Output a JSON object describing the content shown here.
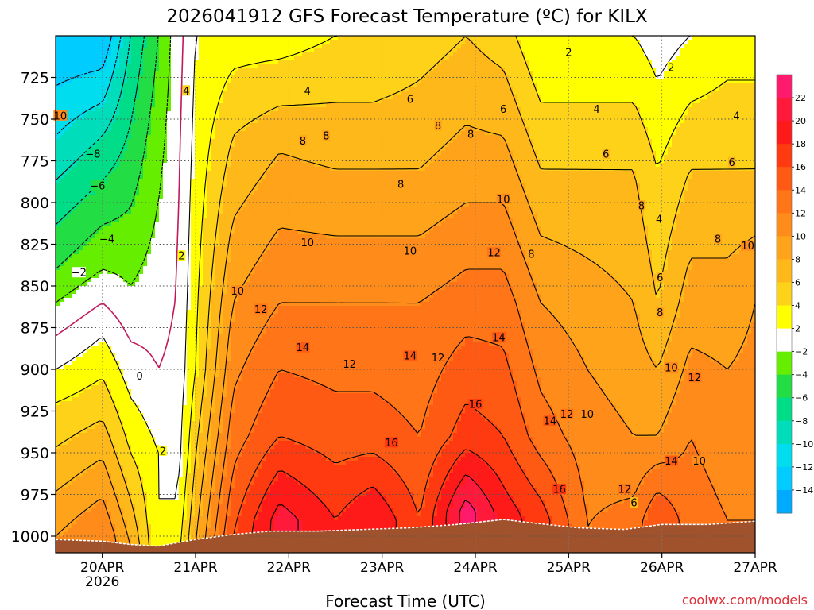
{
  "chart_data": {
    "type": "heatmap",
    "title": "2026041912 GFS Forecast Temperature (ºC) for KILX",
    "xlabel": "Forecast Time (UTC)",
    "ylabel": "",
    "credit": "coolwx.com/models",
    "x_ticks": [
      {
        "label": "20APR",
        "sub": "2026",
        "day": 0
      },
      {
        "label": "21APR",
        "sub": "",
        "day": 1
      },
      {
        "label": "22APR",
        "sub": "",
        "day": 2
      },
      {
        "label": "23APR",
        "sub": "",
        "day": 3
      },
      {
        "label": "24APR",
        "sub": "",
        "day": 4
      },
      {
        "label": "25APR",
        "sub": "",
        "day": 5
      },
      {
        "label": "26APR",
        "sub": "",
        "day": 6
      },
      {
        "label": "27APR",
        "sub": "",
        "day": 7
      }
    ],
    "xlim_days": [
      -0.5,
      7.0
    ],
    "ylim_hpa": [
      700,
      1010
    ],
    "y_ticks": [
      725,
      750,
      775,
      800,
      825,
      850,
      875,
      900,
      925,
      950,
      975,
      1000
    ],
    "y_labels": [
      "725",
      "750",
      "775",
      "800",
      "825",
      "850",
      "875",
      "900",
      "925",
      "950",
      "975",
      "1000"
    ],
    "colorbar": {
      "ticks": [
        22,
        20,
        18,
        16,
        14,
        12,
        10,
        8,
        6,
        4,
        2,
        -2,
        -4,
        -6,
        -8,
        -10,
        -12,
        -14
      ],
      "labels": [
        "22",
        "20",
        "18",
        "16",
        "14",
        "12",
        "10",
        "8",
        "6",
        "4",
        "2",
        "−2",
        "−4",
        "−6",
        "−8",
        "−10",
        "−12",
        "−14"
      ],
      "bands": [
        {
          "from": 22,
          "to": 24,
          "color": "#ff1a6e"
        },
        {
          "from": 20,
          "to": 22,
          "color": "#ff1a3c"
        },
        {
          "from": 18,
          "to": 20,
          "color": "#ff1a1a"
        },
        {
          "from": 16,
          "to": 18,
          "color": "#ff3a10"
        },
        {
          "from": 14,
          "to": 16,
          "color": "#ff5a14"
        },
        {
          "from": 12,
          "to": 14,
          "color": "#ff7518"
        },
        {
          "from": 10,
          "to": 12,
          "color": "#ff8c1a"
        },
        {
          "from": 8,
          "to": 10,
          "color": "#ffa31a"
        },
        {
          "from": 6,
          "to": 8,
          "color": "#ffb81a"
        },
        {
          "from": 4,
          "to": 6,
          "color": "#ffd21a"
        },
        {
          "from": 2,
          "to": 4,
          "color": "#ffff00"
        },
        {
          "from": -2,
          "to": 2,
          "color": "#ffffff"
        },
        {
          "from": -4,
          "to": -2,
          "color": "#66ee00"
        },
        {
          "from": -6,
          "to": -4,
          "color": "#22dd44"
        },
        {
          "from": -8,
          "to": -6,
          "color": "#00dd88"
        },
        {
          "from": -10,
          "to": -8,
          "color": "#00ddbb"
        },
        {
          "from": -12,
          "to": -10,
          "color": "#00ddee"
        },
        {
          "from": -14,
          "to": -12,
          "color": "#00ccff"
        },
        {
          "from": -16,
          "to": -14,
          "color": "#00aaff"
        }
      ]
    },
    "columns": [
      {
        "day": -0.5,
        "low": [
          {
            "p": 700,
            "t": -14
          },
          {
            "p": 760,
            "t": -10
          },
          {
            "p": 840,
            "t": -4
          },
          {
            "p": 880,
            "t": 0
          },
          {
            "p": 920,
            "t": 4
          },
          {
            "p": 1000,
            "t": 10
          }
        ]
      },
      {
        "day": 0.0,
        "low": [
          {
            "p": 700,
            "t": -14
          },
          {
            "p": 760,
            "t": -8
          },
          {
            "p": 840,
            "t": -2
          },
          {
            "p": 880,
            "t": 2
          },
          {
            "p": 930,
            "t": 6
          },
          {
            "p": 1000,
            "t": 12
          }
        ]
      },
      {
        "day": 0.3,
        "low": [
          {
            "p": 700,
            "t": -8
          },
          {
            "p": 780,
            "t": -5
          },
          {
            "p": 850,
            "t": -2
          },
          {
            "p": 900,
            "t": 1
          },
          {
            "p": 950,
            "t": 4
          },
          {
            "p": 1005,
            "t": 8
          }
        ]
      },
      {
        "day": 0.6,
        "low": [
          {
            "p": 700,
            "t": -4
          },
          {
            "p": 800,
            "t": -2
          },
          {
            "p": 900,
            "t": 0
          },
          {
            "p": 950,
            "t": 2
          },
          {
            "p": 1005,
            "t": 2
          }
        ]
      },
      {
        "day": 0.8,
        "low": [
          {
            "p": 700,
            "t": -1
          },
          {
            "p": 850,
            "t": 0
          },
          {
            "p": 950,
            "t": 1
          },
          {
            "p": 1005,
            "t": 3
          }
        ]
      },
      {
        "day": 1.0,
        "low": [
          {
            "p": 700,
            "t": 2
          },
          {
            "p": 800,
            "t": 3
          },
          {
            "p": 900,
            "t": 4
          },
          {
            "p": 1005,
            "t": 8
          }
        ]
      },
      {
        "day": 1.4,
        "low": [
          {
            "p": 700,
            "t": 3
          },
          {
            "p": 760,
            "t": 6
          },
          {
            "p": 860,
            "t": 10
          },
          {
            "p": 940,
            "t": 13
          },
          {
            "p": 1000,
            "t": 16
          }
        ]
      },
      {
        "day": 1.9,
        "low": [
          {
            "p": 700,
            "t": 3
          },
          {
            "p": 770,
            "t": 8
          },
          {
            "p": 860,
            "t": 12
          },
          {
            "p": 940,
            "t": 16
          },
          {
            "p": 990,
            "t": 21
          }
        ]
      },
      {
        "day": 2.5,
        "low": [
          {
            "p": 700,
            "t": 4
          },
          {
            "p": 780,
            "t": 8
          },
          {
            "p": 860,
            "t": 12
          },
          {
            "p": 940,
            "t": 15
          },
          {
            "p": 990,
            "t": 18
          }
        ]
      },
      {
        "day": 2.9,
        "low": [
          {
            "p": 700,
            "t": 4
          },
          {
            "p": 780,
            "t": 8
          },
          {
            "p": 860,
            "t": 12
          },
          {
            "p": 940,
            "t": 15
          },
          {
            "p": 990,
            "t": 20
          }
        ]
      },
      {
        "day": 3.4,
        "low": [
          {
            "p": 700,
            "t": 5
          },
          {
            "p": 780,
            "t": 8
          },
          {
            "p": 860,
            "t": 12
          },
          {
            "p": 940,
            "t": 14
          },
          {
            "p": 990,
            "t": 16
          }
        ]
      },
      {
        "day": 3.9,
        "low": [
          {
            "p": 700,
            "t": 6
          },
          {
            "p": 780,
            "t": 9
          },
          {
            "p": 860,
            "t": 13
          },
          {
            "p": 940,
            "t": 17
          },
          {
            "p": 985,
            "t": 23
          }
        ]
      },
      {
        "day": 4.3,
        "low": [
          {
            "p": 700,
            "t": 5
          },
          {
            "p": 780,
            "t": 9
          },
          {
            "p": 860,
            "t": 13
          },
          {
            "p": 940,
            "t": 16
          },
          {
            "p": 985,
            "t": 19
          }
        ]
      },
      {
        "day": 4.7,
        "low": [
          {
            "p": 700,
            "t": 2
          },
          {
            "p": 780,
            "t": 6
          },
          {
            "p": 860,
            "t": 10
          },
          {
            "p": 940,
            "t": 13
          },
          {
            "p": 990,
            "t": 17
          }
        ]
      },
      {
        "day": 5.2,
        "low": [
          {
            "p": 700,
            "t": 2
          },
          {
            "p": 780,
            "t": 6
          },
          {
            "p": 860,
            "t": 9
          },
          {
            "p": 940,
            "t": 11
          },
          {
            "p": 995,
            "t": 12
          }
        ]
      },
      {
        "day": 5.7,
        "low": [
          {
            "p": 700,
            "t": 2
          },
          {
            "p": 780,
            "t": 6
          },
          {
            "p": 860,
            "t": 8
          },
          {
            "p": 940,
            "t": 10
          },
          {
            "p": 995,
            "t": 13
          }
        ]
      },
      {
        "day": 5.95,
        "low": [
          {
            "p": 700,
            "t": 1
          },
          {
            "p": 780,
            "t": 4
          },
          {
            "p": 860,
            "t": 6
          },
          {
            "p": 940,
            "t": 10
          },
          {
            "p": 990,
            "t": 16
          }
        ]
      },
      {
        "day": 6.3,
        "low": [
          {
            "p": 700,
            "t": 2
          },
          {
            "p": 780,
            "t": 6
          },
          {
            "p": 860,
            "t": 9
          },
          {
            "p": 940,
            "t": 12
          },
          {
            "p": 990,
            "t": 13
          }
        ]
      },
      {
        "day": 6.7,
        "low": [
          {
            "p": 700,
            "t": 3
          },
          {
            "p": 780,
            "t": 6
          },
          {
            "p": 860,
            "t": 9
          },
          {
            "p": 940,
            "t": 11
          },
          {
            "p": 990,
            "t": 12
          }
        ]
      },
      {
        "day": 7.0,
        "low": [
          {
            "p": 700,
            "t": 3
          },
          {
            "p": 780,
            "t": 6
          },
          {
            "p": 860,
            "t": 10
          },
          {
            "p": 940,
            "t": 11
          },
          {
            "p": 990,
            "t": 12
          }
        ]
      }
    ],
    "surface_pressure": [
      {
        "day": -0.5,
        "p": 1002
      },
      {
        "day": 0.0,
        "p": 1003
      },
      {
        "day": 0.3,
        "p": 1005
      },
      {
        "day": 0.6,
        "p": 1006
      },
      {
        "day": 1.0,
        "p": 1002
      },
      {
        "day": 1.4,
        "p": 999
      },
      {
        "day": 1.8,
        "p": 997
      },
      {
        "day": 2.3,
        "p": 997
      },
      {
        "day": 2.8,
        "p": 996
      },
      {
        "day": 3.3,
        "p": 995
      },
      {
        "day": 3.8,
        "p": 993
      },
      {
        "day": 4.3,
        "p": 990
      },
      {
        "day": 4.6,
        "p": 992
      },
      {
        "day": 5.1,
        "p": 995
      },
      {
        "day": 5.6,
        "p": 996
      },
      {
        "day": 6.0,
        "p": 993
      },
      {
        "day": 6.5,
        "p": 993
      },
      {
        "day": 7.0,
        "p": 991
      }
    ],
    "contour_labels": [
      {
        "text": "2",
        "day": 5.0,
        "p": 710
      },
      {
        "text": "2",
        "day": 6.1,
        "p": 719
      },
      {
        "text": "4",
        "day": 0.9,
        "p": 733
      },
      {
        "text": "4",
        "day": 2.2,
        "p": 733
      },
      {
        "text": "6",
        "day": 3.3,
        "p": 738
      },
      {
        "text": "6",
        "day": 4.3,
        "p": 744
      },
      {
        "text": "4",
        "day": 5.3,
        "p": 744
      },
      {
        "text": "4",
        "day": 6.8,
        "p": 748
      },
      {
        "text": "10",
        "day": -0.45,
        "p": 748
      },
      {
        "text": "8",
        "day": 2.4,
        "p": 760
      },
      {
        "text": "8",
        "day": 3.6,
        "p": 754
      },
      {
        "text": "8",
        "day": 3.95,
        "p": 759
      },
      {
        "text": "−8",
        "day": -0.1,
        "p": 771
      },
      {
        "text": "6",
        "day": 5.4,
        "p": 771
      },
      {
        "text": "6",
        "day": 6.75,
        "p": 776
      },
      {
        "text": "8",
        "day": 2.15,
        "p": 763
      },
      {
        "text": "−6",
        "day": -0.05,
        "p": 790
      },
      {
        "text": "8",
        "day": 3.2,
        "p": 789
      },
      {
        "text": "10",
        "day": 4.3,
        "p": 798
      },
      {
        "text": "8",
        "day": 5.78,
        "p": 802
      },
      {
        "text": "4",
        "day": 5.97,
        "p": 810
      },
      {
        "text": "−4",
        "day": 0.05,
        "p": 822
      },
      {
        "text": "10",
        "day": 2.2,
        "p": 824
      },
      {
        "text": "10",
        "day": 3.3,
        "p": 829
      },
      {
        "text": "12",
        "day": 4.2,
        "p": 830
      },
      {
        "text": "8",
        "day": 4.6,
        "p": 831
      },
      {
        "text": "8",
        "day": 6.6,
        "p": 822
      },
      {
        "text": "10",
        "day": 6.92,
        "p": 826
      },
      {
        "text": "−2",
        "day": -0.25,
        "p": 842
      },
      {
        "text": "2",
        "day": 0.85,
        "p": 832
      },
      {
        "text": "6",
        "day": 5.98,
        "p": 845
      },
      {
        "text": "10",
        "day": 1.45,
        "p": 853
      },
      {
        "text": "12",
        "day": 1.7,
        "p": 864
      },
      {
        "text": "8",
        "day": 5.98,
        "p": 866
      },
      {
        "text": "14",
        "day": 2.15,
        "p": 887
      },
      {
        "text": "14",
        "day": 4.25,
        "p": 881
      },
      {
        "text": "14",
        "day": 3.3,
        "p": 892
      },
      {
        "text": "12",
        "day": 2.65,
        "p": 897
      },
      {
        "text": "12",
        "day": 3.6,
        "p": 893
      },
      {
        "text": "0",
        "day": 0.4,
        "p": 904
      },
      {
        "text": "10",
        "day": 6.1,
        "p": 899
      },
      {
        "text": "12",
        "day": 6.35,
        "p": 905
      },
      {
        "text": "16",
        "day": 4.0,
        "p": 921
      },
      {
        "text": "12",
        "day": 4.98,
        "p": 927
      },
      {
        "text": "10",
        "day": 5.2,
        "p": 927
      },
      {
        "text": "14",
        "day": 4.8,
        "p": 931
      },
      {
        "text": "16",
        "day": 3.1,
        "p": 944
      },
      {
        "text": "2",
        "day": 0.65,
        "p": 949
      },
      {
        "text": "14",
        "day": 6.1,
        "p": 955
      },
      {
        "text": "10",
        "day": 6.4,
        "p": 955
      },
      {
        "text": "16",
        "day": 4.9,
        "p": 972
      },
      {
        "text": "12",
        "day": 5.6,
        "p": 972
      },
      {
        "text": "6",
        "day": 5.7,
        "p": 980
      }
    ]
  }
}
